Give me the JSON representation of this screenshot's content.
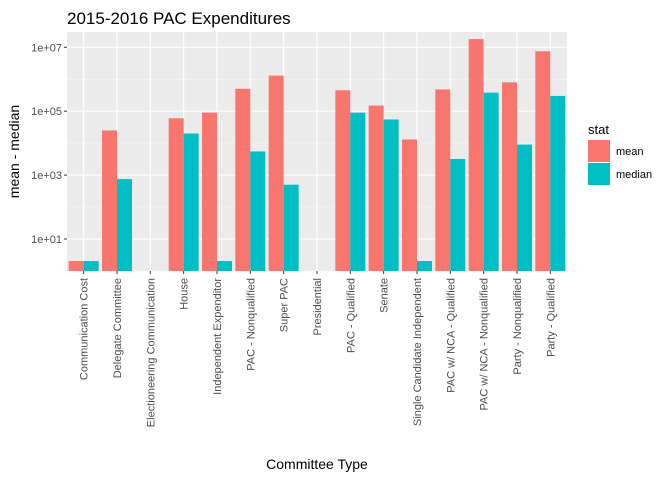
{
  "chart_data": {
    "type": "bar",
    "title": "2015-2016 PAC Expenditures",
    "xlabel": "Committee Type",
    "ylabel": "mean - median",
    "y_scale": "log10",
    "ylim": [
      1,
      30000000
    ],
    "y_ticks": [
      10,
      1000,
      100000,
      10000000
    ],
    "y_tick_labels": [
      "1e+01",
      "1e+03",
      "1e+05",
      "1e+07"
    ],
    "grid": true,
    "legend": {
      "title": "stat",
      "position": "right"
    },
    "categories": [
      "Communication Cost",
      "Delegate Committee",
      "Electioneering Communication",
      "House",
      "Independent Expenditor",
      "PAC - Nonqualified",
      "Super PAC",
      "Presidential",
      "PAC - Qualified",
      "Senate",
      "Single Candidate Independent",
      "PAC w/ NCA - Qualified",
      "PAC w/ NCA - Nonqualified",
      "Party - Nonqualified",
      "Party - Qualified"
    ],
    "series": [
      {
        "name": "mean",
        "color": "#F8766D",
        "values": [
          1,
          25000,
          null,
          60000,
          90000,
          500000,
          1300000,
          null,
          450000,
          150000,
          13000,
          480000,
          18000000,
          800000,
          7500000
        ]
      },
      {
        "name": "median",
        "color": "#00BFC4",
        "values": [
          1,
          750,
          null,
          20000,
          1,
          5500,
          500,
          null,
          90000,
          55000,
          1,
          3200,
          380000,
          9000,
          300000
        ]
      }
    ]
  }
}
